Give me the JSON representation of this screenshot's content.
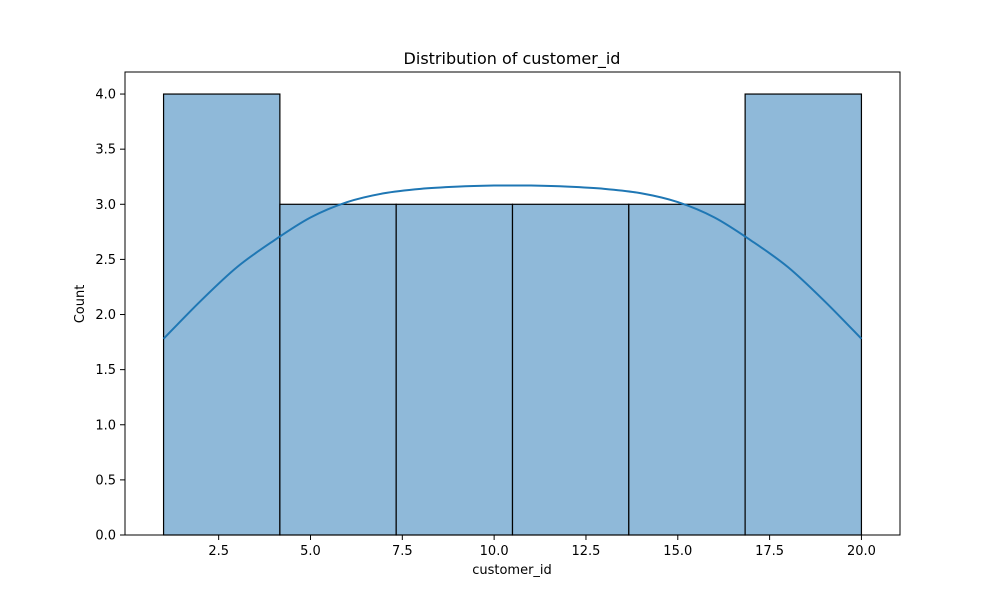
{
  "chart_data": {
    "type": "bar",
    "subtype": "histogram",
    "title": "Distribution of customer_id",
    "xlabel": "customer_id",
    "ylabel": "Count",
    "bin_edges": [
      1.0,
      4.1667,
      7.3333,
      10.5,
      13.6667,
      16.8333,
      20.0
    ],
    "counts": [
      4,
      3,
      3,
      3,
      3,
      4
    ],
    "xlim": [
      -0.05,
      21.05
    ],
    "ylim": [
      0,
      4.2
    ],
    "xticks": [
      2.5,
      5.0,
      7.5,
      10.0,
      12.5,
      15.0,
      17.5,
      20.0
    ],
    "xtick_labels": [
      "2.5",
      "5.0",
      "7.5",
      "10.0",
      "12.5",
      "15.0",
      "17.5",
      "20.0"
    ],
    "yticks": [
      0.0,
      0.5,
      1.0,
      1.5,
      2.0,
      2.5,
      3.0,
      3.5,
      4.0
    ],
    "ytick_labels": [
      "0.0",
      "0.5",
      "1.0",
      "1.5",
      "2.0",
      "2.5",
      "3.0",
      "3.5",
      "4.0"
    ],
    "kde": {
      "x": [
        1.0,
        2.0,
        3.0,
        4.0,
        5.0,
        6.0,
        7.0,
        8.0,
        9.0,
        10.0,
        10.5,
        11.0,
        12.0,
        13.0,
        14.0,
        15.0,
        16.0,
        17.0,
        18.0,
        19.0,
        20.0
      ],
      "y": [
        1.78,
        2.12,
        2.43,
        2.67,
        2.88,
        3.02,
        3.1,
        3.14,
        3.16,
        3.17,
        3.17,
        3.17,
        3.16,
        3.14,
        3.1,
        3.02,
        2.88,
        2.67,
        2.43,
        2.12,
        1.78
      ]
    },
    "grid": false,
    "legend": "none",
    "colors": {
      "bar_fill": "#8fb9d9",
      "bar_edge": "#000000",
      "kde_line": "#1f77b4",
      "axis": "#000000"
    }
  }
}
